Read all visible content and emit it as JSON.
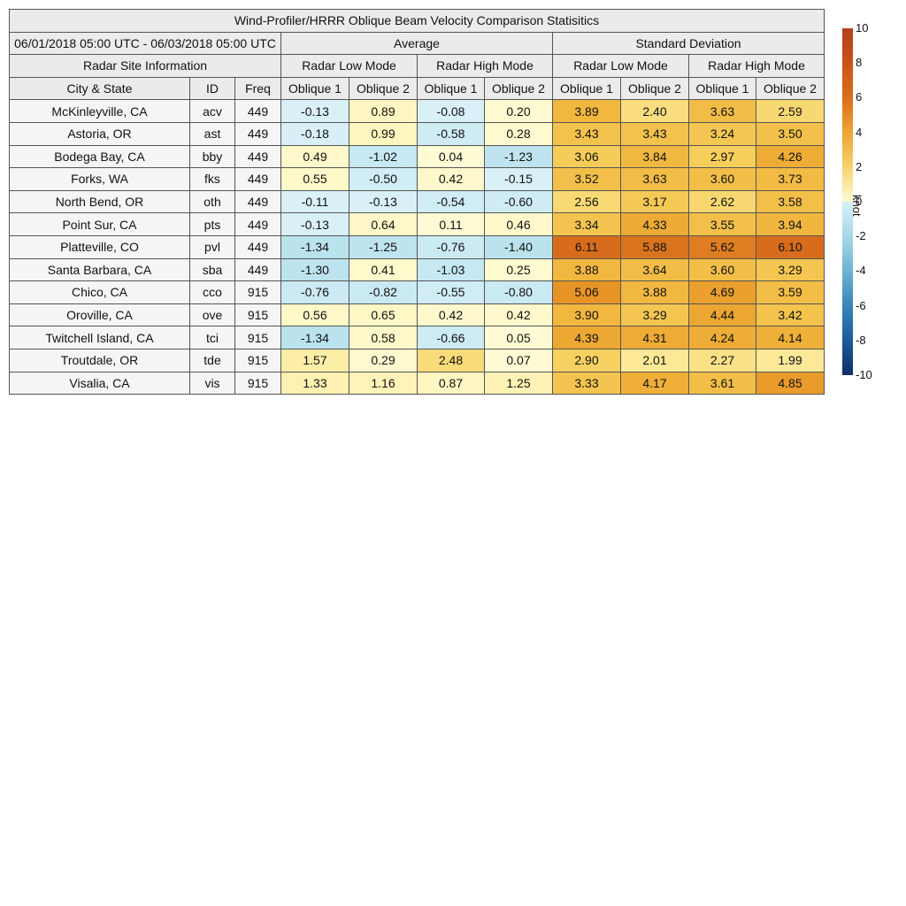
{
  "chart_data": {
    "type": "table",
    "title": "Wind-Profiler/HRRR Oblique Beam Velocity Comparison Statisitics",
    "date_range": "06/01/2018 05:00 UTC - 06/03/2018 05:00 UTC",
    "group_headers": [
      "Average",
      "Standard Deviation"
    ],
    "section_header": "Radar Site Information",
    "mode_headers": [
      "Radar Low Mode",
      "Radar High Mode",
      "Radar Low Mode",
      "Radar High Mode"
    ],
    "column_headers": [
      "City & State",
      "ID",
      "Freq",
      "Oblique 1",
      "Oblique 2",
      "Oblique 1",
      "Oblique 2",
      "Oblique 1",
      "Oblique 2",
      "Oblique 1",
      "Oblique 2"
    ],
    "rows": [
      {
        "city": "McKinleyville, CA",
        "id": "acv",
        "freq": "449",
        "values": [
          "-0.13",
          "0.89",
          "-0.08",
          "0.20",
          "3.89",
          "2.40",
          "3.63",
          "2.59"
        ]
      },
      {
        "city": "Astoria, OR",
        "id": "ast",
        "freq": "449",
        "values": [
          "-0.18",
          "0.99",
          "-0.58",
          "0.28",
          "3.43",
          "3.43",
          "3.24",
          "3.50"
        ]
      },
      {
        "city": "Bodega Bay, CA",
        "id": "bby",
        "freq": "449",
        "values": [
          "0.49",
          "-1.02",
          "0.04",
          "-1.23",
          "3.06",
          "3.84",
          "2.97",
          "4.26"
        ]
      },
      {
        "city": "Forks, WA",
        "id": "fks",
        "freq": "449",
        "values": [
          "0.55",
          "-0.50",
          "0.42",
          "-0.15",
          "3.52",
          "3.63",
          "3.60",
          "3.73"
        ]
      },
      {
        "city": "North Bend, OR",
        "id": "oth",
        "freq": "449",
        "values": [
          "-0.11",
          "-0.13",
          "-0.54",
          "-0.60",
          "2.56",
          "3.17",
          "2.62",
          "3.58"
        ]
      },
      {
        "city": "Point Sur, CA",
        "id": "pts",
        "freq": "449",
        "values": [
          "-0.13",
          "0.64",
          "0.11",
          "0.46",
          "3.34",
          "4.33",
          "3.55",
          "3.94"
        ]
      },
      {
        "city": "Platteville, CO",
        "id": "pvl",
        "freq": "449",
        "values": [
          "-1.34",
          "-1.25",
          "-0.76",
          "-1.40",
          "6.11",
          "5.88",
          "5.62",
          "6.10"
        ]
      },
      {
        "city": "Santa Barbara, CA",
        "id": "sba",
        "freq": "449",
        "values": [
          "-1.30",
          "0.41",
          "-1.03",
          "0.25",
          "3.88",
          "3.64",
          "3.60",
          "3.29"
        ]
      },
      {
        "city": "Chico, CA",
        "id": "cco",
        "freq": "915",
        "values": [
          "-0.76",
          "-0.82",
          "-0.55",
          "-0.80",
          "5.06",
          "3.88",
          "4.69",
          "3.59"
        ]
      },
      {
        "city": "Oroville, CA",
        "id": "ove",
        "freq": "915",
        "values": [
          "0.56",
          "0.65",
          "0.42",
          "0.42",
          "3.90",
          "3.29",
          "4.44",
          "3.42"
        ]
      },
      {
        "city": "Twitchell Island, CA",
        "id": "tci",
        "freq": "915",
        "values": [
          "-1.34",
          "0.58",
          "-0.66",
          "0.05",
          "4.39",
          "4.31",
          "4.24",
          "4.14"
        ]
      },
      {
        "city": "Troutdale, OR",
        "id": "tde",
        "freq": "915",
        "values": [
          "1.57",
          "0.29",
          "2.48",
          "0.07",
          "2.90",
          "2.01",
          "2.27",
          "1.99"
        ]
      },
      {
        "city": "Visalia, CA",
        "id": "vis",
        "freq": "915",
        "values": [
          "1.33",
          "1.16",
          "0.87",
          "1.25",
          "3.33",
          "4.17",
          "3.61",
          "4.85"
        ]
      }
    ],
    "colorbar": {
      "label": "knot",
      "range": [
        -10,
        10
      ],
      "ticks": [
        "10",
        "8",
        "6",
        "4",
        "2",
        "0",
        "-2",
        "-4",
        "-6",
        "-8",
        "-10"
      ],
      "colormap": "diverging blue-white-yellow-orange-red"
    }
  },
  "colors": {
    "header_bg": "#ebebeb",
    "info_bg": "#f5f5f5",
    "border": "#555555"
  }
}
